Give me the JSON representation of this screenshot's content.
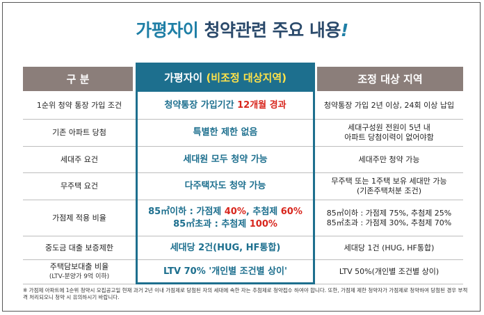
{
  "title": {
    "brand": "가평자이",
    "rest": "청약관련 주요 내용",
    "excl": "!"
  },
  "headers": {
    "left": "구 분",
    "mid_main": "가평자이",
    "mid_highlight": "(비조정 대상지역)",
    "right": "조정 대상 지역"
  },
  "rows": [
    {
      "label": "1순위 청약 통장 가입 조건",
      "mid": [
        {
          "t": "청약통장 가입기간 ",
          "r": false
        },
        {
          "t": "12개월 경과",
          "r": true
        }
      ],
      "right": [
        "청약통장 가입 2년 이상, 24회 이상 납입"
      ]
    },
    {
      "label": "기존 아파트 당첨",
      "mid": [
        {
          "t": "특별한 제한 없음",
          "r": false
        }
      ],
      "right": [
        "세대구성원 전원이 5년 내",
        "아파트 당첨이력이 없어야함"
      ]
    },
    {
      "label": "세대주 요건",
      "mid": [
        {
          "t": "세대원 모두 청약 가능",
          "r": false
        }
      ],
      "right": [
        "세대주만 청약 가능"
      ]
    },
    {
      "label": "무주택 요건",
      "mid": [
        {
          "t": "다주택자도 청약 가능",
          "r": false
        }
      ],
      "right": [
        "무주택 또는 1주택 보유 세대만 가능",
        "(기존주택처분 조건)"
      ]
    },
    {
      "label": "가점제 적용 비율",
      "mid_lines": [
        [
          {
            "t": "85㎡이하 : 가점제 ",
            "r": false
          },
          {
            "t": "40%",
            "r": true
          },
          {
            "t": ", 추첨제 ",
            "r": false
          },
          {
            "t": "60%",
            "r": true
          }
        ],
        [
          {
            "t": "85㎡초과 : 추첨제 ",
            "r": false
          },
          {
            "t": "100%",
            "r": true
          }
        ]
      ],
      "right": [
        "85㎡이하 : 가점제 75%, 추첨제 25%",
        "85㎡초과 : 가점제 30%, 추첨제 70%"
      ]
    },
    {
      "label": "중도금 대출 보증제한",
      "mid": [
        {
          "t": "세대당 2건(HUG, HF통합)",
          "r": false
        }
      ],
      "right": [
        "세대당 1건 (HUG, HF통합)"
      ]
    },
    {
      "label": "주택담보대출 비율",
      "label_sub": "(LTV-분양가 9억 이하)",
      "mid": [
        {
          "t": "LTV 70% '개인별 조건별 상이'",
          "r": false
        }
      ],
      "right": [
        "LTV 50%(개인별 조건별 상이)"
      ]
    }
  ],
  "footnote": "※ 가점제 아파트에 1순위 청약시 모집공고일 현재 과거 2년 이내 가점제로 당첨된 자의 세대에 속한 자는 추첨제로 청약접수 하여야 합니다. 또한, 가점제 제한 청약자가 가점제로 청약하여 당첨된 경우 부적격 처리되오니 청약 시 유의하시기 바랍니다."
}
